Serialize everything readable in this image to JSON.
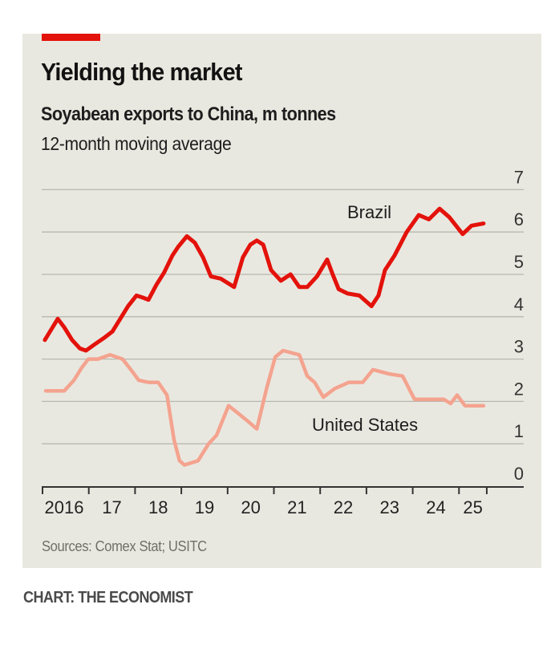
{
  "header": {
    "title": "Yielding the market",
    "subtitle": "Soyabean exports to China, m tonnes",
    "subtitle2": "12-month moving average"
  },
  "footer": {
    "sources": "Sources: Comex Stat; USITC",
    "credit": "CHART: THE ECONOMIST"
  },
  "colors": {
    "accent": "#e3120b",
    "brazil": "#e3120b",
    "united_states": "#f4a38f",
    "background": "#e9e8e0",
    "gridline": "#b9b8b0",
    "axis": "#333333"
  },
  "chart_data": {
    "type": "line",
    "title": "Yielding the market",
    "subtitle": "Soyabean exports to China, m tonnes; 12-month moving average",
    "xlabel": "",
    "ylabel": "m tonnes",
    "xlim": [
      2016,
      2025.6
    ],
    "ylim": [
      0,
      7
    ],
    "y_ticks": [
      0,
      1,
      2,
      3,
      4,
      5,
      6,
      7
    ],
    "y_tick_labels": [
      "0",
      "1",
      "2",
      "3",
      "4",
      "5",
      "6",
      "7"
    ],
    "y_axis_side": "right",
    "x_ticks": [
      2016,
      2017,
      2018,
      2019,
      2020,
      2021,
      2022,
      2023,
      2024,
      2025,
      2025.6
    ],
    "x_tick_labels": [
      "2016",
      "17",
      "18",
      "19",
      "20",
      "21",
      "22",
      "23",
      "24",
      "25"
    ],
    "grid": true,
    "legend": "inline labels",
    "series": [
      {
        "name": "Brazil",
        "label_position": "above line, near 2023-24",
        "x": [
          2016.05,
          2016.19,
          2016.33,
          2016.47,
          2016.64,
          2016.81,
          2016.94,
          2017.13,
          2017.33,
          2017.51,
          2017.68,
          2017.85,
          2018.03,
          2018.17,
          2018.29,
          2018.46,
          2018.63,
          2018.81,
          2018.93,
          2019.12,
          2019.29,
          2019.47,
          2019.64,
          2019.85,
          2020.14,
          2020.33,
          2020.49,
          2020.63,
          2020.77,
          2020.94,
          2021.15,
          2021.36,
          2021.55,
          2021.72,
          2021.93,
          2022.15,
          2022.27,
          2022.4,
          2022.59,
          2022.85,
          2023.11,
          2023.26,
          2023.4,
          2023.61,
          2023.87,
          2024.13,
          2024.35,
          2024.58,
          2024.79,
          2025.08,
          2025.27,
          2025.53
        ],
        "values": [
          3.45,
          3.7,
          3.95,
          3.75,
          3.45,
          3.25,
          3.2,
          3.35,
          3.5,
          3.65,
          3.95,
          4.25,
          4.5,
          4.45,
          4.4,
          4.75,
          5.05,
          5.45,
          5.65,
          5.9,
          5.75,
          5.4,
          4.95,
          4.9,
          4.7,
          5.4,
          5.7,
          5.8,
          5.7,
          5.1,
          4.85,
          5.0,
          4.7,
          4.7,
          4.95,
          5.35,
          5.0,
          4.65,
          4.55,
          4.5,
          4.25,
          4.5,
          5.1,
          5.45,
          6.0,
          6.4,
          6.3,
          6.55,
          6.35,
          5.95,
          6.15,
          6.2
        ]
      },
      {
        "name": "United States",
        "label_position": "below line, near 2022-24",
        "x": [
          2016.07,
          2016.29,
          2016.47,
          2016.68,
          2016.85,
          2016.99,
          2017.2,
          2017.46,
          2017.73,
          2017.91,
          2018.08,
          2018.29,
          2018.5,
          2018.69,
          2018.84,
          2018.96,
          2019.07,
          2019.36,
          2019.59,
          2019.76,
          2020.02,
          2020.25,
          2020.42,
          2020.63,
          2020.84,
          2021.03,
          2021.2,
          2021.55,
          2021.72,
          2021.88,
          2022.07,
          2022.31,
          2022.62,
          2022.92,
          2023.14,
          2023.49,
          2023.78,
          2024.04,
          2024.32,
          2024.67,
          2024.82,
          2024.96,
          2025.13,
          2025.53
        ],
        "values": [
          2.25,
          2.25,
          2.25,
          2.5,
          2.8,
          3.0,
          3.0,
          3.1,
          3.0,
          2.75,
          2.5,
          2.45,
          2.45,
          2.15,
          1.1,
          0.6,
          0.5,
          0.6,
          1.0,
          1.2,
          1.9,
          1.7,
          1.55,
          1.35,
          2.3,
          3.05,
          3.2,
          3.1,
          2.6,
          2.45,
          2.1,
          2.3,
          2.45,
          2.45,
          2.75,
          2.65,
          2.6,
          2.05,
          2.05,
          2.05,
          1.95,
          2.15,
          1.9,
          1.9
        ]
      }
    ]
  }
}
